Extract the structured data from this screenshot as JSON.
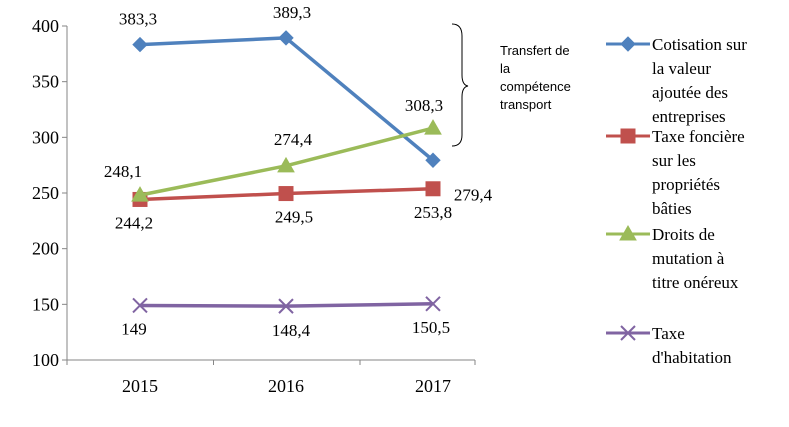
{
  "chart_data": {
    "type": "line",
    "categories": [
      "2015",
      "2016",
      "2017"
    ],
    "ylim": [
      100,
      400
    ],
    "yticks": [
      100,
      150,
      200,
      250,
      300,
      350,
      400
    ],
    "grid": false,
    "legend_position": "right",
    "series": [
      {
        "name": "Cotisation sur la valeur ajoutée des entreprises",
        "legend_lines": [
          "Cotisation sur",
          "la valeur",
          "ajoutée des",
          "entreprises"
        ],
        "values": [
          383.3,
          389.3,
          279.4
        ],
        "labels": [
          "383,3",
          "389,3",
          "279,4"
        ],
        "color": "#4f81bd",
        "marker": "diamond"
      },
      {
        "name": "Taxe foncière sur les propriétés bâties",
        "legend_lines": [
          "Taxe foncière",
          "sur les",
          "propriétés",
          "bâties"
        ],
        "values": [
          244.2,
          249.5,
          253.8
        ],
        "labels": [
          "244,2",
          "249,5",
          "253,8"
        ],
        "color": "#c0504d",
        "marker": "square"
      },
      {
        "name": "Droits de mutation à titre onéreux",
        "legend_lines": [
          "Droits de",
          "mutation à",
          "titre onéreux"
        ],
        "values": [
          248.1,
          274.4,
          308.3
        ],
        "labels": [
          "248,1",
          "274,4",
          "308,3"
        ],
        "color": "#9bbb59",
        "marker": "triangle"
      },
      {
        "name": "Taxe d'habitation",
        "legend_lines": [
          "Taxe",
          "d'habitation"
        ],
        "values": [
          149,
          148.4,
          150.5
        ],
        "labels": [
          "149",
          "148,4",
          "150,5"
        ],
        "color": "#8064a2",
        "marker": "x"
      }
    ],
    "annotation": {
      "lines": [
        "Transfert de",
        "la",
        "compétence",
        "transport"
      ]
    }
  }
}
